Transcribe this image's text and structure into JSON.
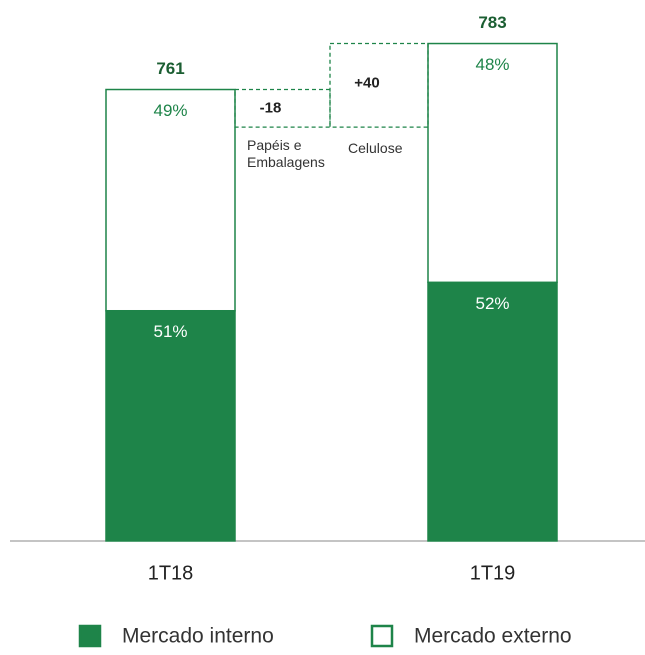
{
  "chart_data": {
    "type": "bar",
    "categories": [
      "1T18",
      "1T19"
    ],
    "totals": [
      761,
      783
    ],
    "series": [
      {
        "name": "Mercado interno",
        "color": "#1e8449",
        "values": [
          51,
          52
        ],
        "value_labels": [
          "51%",
          "52%"
        ]
      },
      {
        "name": "Mercado externo",
        "color": "#ffffff",
        "values": [
          49,
          48
        ],
        "value_labels": [
          "49%",
          "48%"
        ]
      }
    ],
    "bridge": {
      "categories": [
        "Papéis e Embalagens",
        "Celulose"
      ],
      "values": [
        -18,
        40
      ],
      "value_labels": [
        "-18",
        "+40"
      ]
    },
    "ylim": [
      545,
      800
    ],
    "legend": "bottom"
  }
}
